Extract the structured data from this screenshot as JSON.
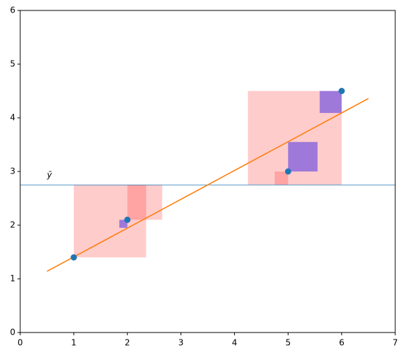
{
  "chart_data": {
    "type": "scatter",
    "x": [
      1,
      2,
      5,
      6
    ],
    "values": [
      1.4,
      2.1,
      3.0,
      4.5
    ],
    "color": "#1f77b4",
    "ybar": 2.75,
    "ybar_label": "ȳ",
    "ybar_color": "#1f77b4",
    "fit": {
      "x": [
        0.5,
        6.5
      ],
      "y": [
        1.14,
        4.36
      ],
      "color": "#ff7f0e"
    },
    "total_squares": {
      "color": "#ff0000",
      "opacity": 0.2,
      "x0": [
        1,
        2,
        4.75,
        4.25
      ],
      "x1": [
        2.35,
        2.65,
        5,
        6
      ],
      "y0": [
        1.4,
        2.1,
        2.75,
        2.75
      ],
      "y1": [
        2.75,
        2.75,
        3.0,
        4.5
      ]
    },
    "residual_squares": {
      "color": "#9370db",
      "opacity": 0.9,
      "x0": [
        1,
        1.85,
        5,
        5.59
      ],
      "x1": [
        1.01,
        2,
        5.55,
        6
      ],
      "y0": [
        1.39,
        1.95,
        3.0,
        4.09
      ],
      "y1": [
        1.4,
        2.1,
        3.55,
        4.5
      ]
    },
    "xlim": [
      0,
      7
    ],
    "ylim": [
      0,
      6
    ],
    "xticks": [
      0,
      1,
      2,
      3,
      4,
      5,
      6,
      7
    ],
    "yticks": [
      0,
      1,
      2,
      3,
      4,
      5,
      6
    ]
  }
}
